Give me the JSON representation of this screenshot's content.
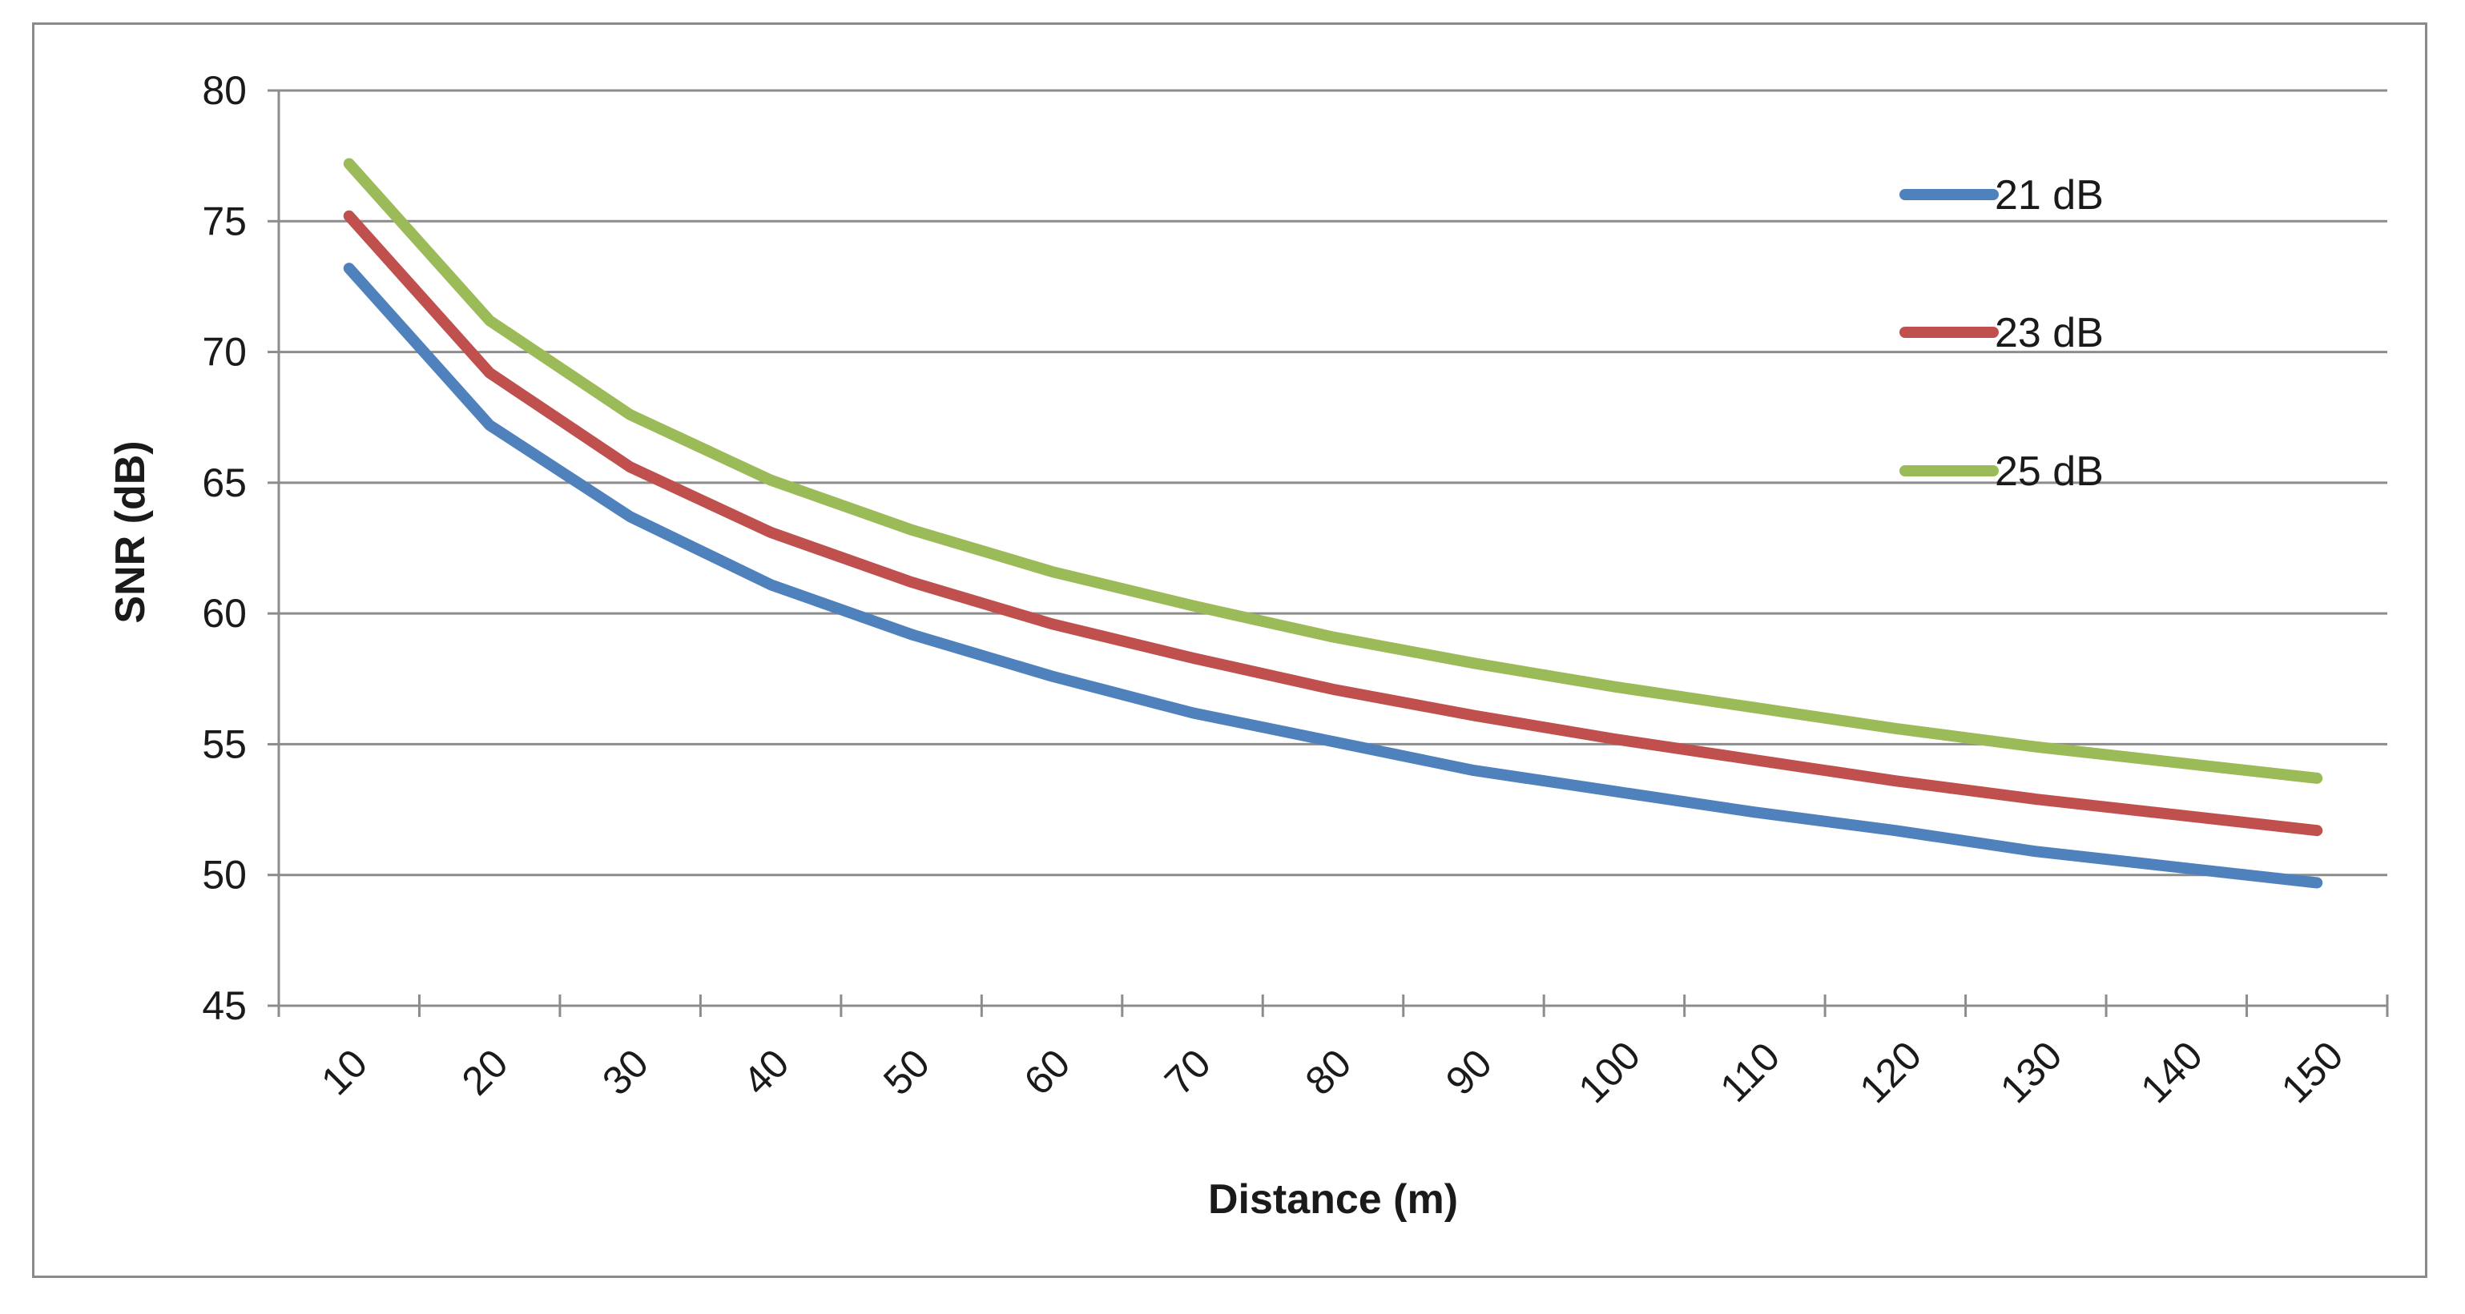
{
  "chart_data": {
    "type": "line",
    "title": "",
    "xlabel": "Distance (m)",
    "ylabel": "SNR (dB)",
    "x": [
      10,
      20,
      30,
      40,
      50,
      60,
      70,
      80,
      90,
      100,
      110,
      120,
      130,
      140,
      150
    ],
    "x_tick_labels": [
      "10",
      "20",
      "30",
      "40",
      "50",
      "60",
      "70",
      "80",
      "90",
      "100",
      "110",
      "120",
      "130",
      "140",
      "150"
    ],
    "ylim": [
      45,
      80
    ],
    "y_ticks": [
      45,
      50,
      55,
      60,
      65,
      70,
      75,
      80
    ],
    "grid": "horizontal",
    "legend_position": "top-right",
    "series": [
      {
        "name": "21 dB",
        "color": "#4f81bd",
        "values": [
          73.2,
          67.2,
          63.7,
          61.1,
          59.2,
          57.6,
          56.2,
          55.1,
          54.0,
          53.2,
          52.4,
          51.7,
          50.9,
          50.3,
          49.7
        ]
      },
      {
        "name": "23 dB",
        "color": "#c0504d",
        "values": [
          75.2,
          69.2,
          65.6,
          63.1,
          61.2,
          59.6,
          58.3,
          57.1,
          56.1,
          55.2,
          54.4,
          53.6,
          52.9,
          52.3,
          51.7
        ]
      },
      {
        "name": "25 dB",
        "color": "#9bbb59",
        "values": [
          77.2,
          71.2,
          67.6,
          65.1,
          63.2,
          61.6,
          60.3,
          59.1,
          58.1,
          57.2,
          56.4,
          55.6,
          54.9,
          54.3,
          53.7
        ]
      }
    ]
  }
}
